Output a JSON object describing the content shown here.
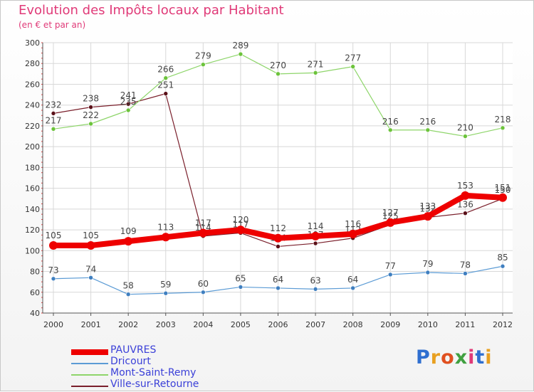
{
  "header": {
    "title": "Evolution des Impôts locaux par Habitant",
    "subtitle": "(en € et par an)"
  },
  "logo": {
    "letters": [
      "P",
      "r",
      "o",
      "x",
      "i",
      "t",
      "i"
    ],
    "colors": [
      "#2f6fd0",
      "#e8a020",
      "#e05020",
      "#40a040",
      "#e03a78",
      "#2f6fd0",
      "#e8a020"
    ]
  },
  "chart_data": {
    "type": "line",
    "title": "Evolution des Impôts locaux par Habitant",
    "subtitle": "(en € et par an)",
    "x": [
      "2000",
      "2001",
      "2002",
      "2003",
      "2004",
      "2005",
      "2006",
      "2007",
      "2008",
      "2009",
      "2010",
      "2011",
      "2012"
    ],
    "ylim": [
      40,
      300
    ],
    "yticks": [
      40,
      60,
      80,
      100,
      120,
      140,
      160,
      180,
      200,
      220,
      240,
      260,
      280,
      300
    ],
    "grid": true,
    "series": [
      {
        "name": "Ville-sur-Retourne",
        "color": "#7a1f2b",
        "marker": "#5a1018",
        "width": 1.2,
        "radius": 3,
        "values": [
          232,
          238,
          241,
          251,
          114,
          117,
          104,
          107,
          112,
          125,
          132,
          136,
          150
        ],
        "labels": [
          "232",
          "238",
          "241",
          "251",
          "114",
          "117",
          "104",
          "107",
          "112",
          "125",
          "132",
          "136",
          "150"
        ]
      },
      {
        "name": "Mont-Saint-Remy",
        "color": "#8ed56a",
        "marker": "#6cc33b",
        "width": 1.2,
        "radius": 3,
        "values": [
          217,
          222,
          235,
          266,
          279,
          289,
          270,
          271,
          277,
          216,
          216,
          210,
          218
        ],
        "labels": [
          "217",
          "222",
          "235",
          "266",
          "279",
          "289",
          "270",
          "271",
          "277",
          "216",
          "216",
          "210",
          "218"
        ]
      },
      {
        "name": "Dricourt",
        "color": "#5b9bd5",
        "marker": "#3f7fc0",
        "width": 1.2,
        "radius": 3,
        "values": [
          73,
          74,
          58,
          59,
          60,
          65,
          64,
          63,
          64,
          77,
          79,
          78,
          85
        ],
        "labels": [
          "73",
          "74",
          "58",
          "59",
          "60",
          "65",
          "64",
          "63",
          "64",
          "77",
          "79",
          "78",
          "85"
        ]
      },
      {
        "name": "PAUVRES",
        "color": "#ee0000",
        "marker": "#ee0000",
        "width": 8,
        "radius": 6,
        "values": [
          105,
          105,
          109,
          113,
          117,
          120,
          112,
          114,
          116,
          127,
          133,
          153,
          151
        ],
        "labels": [
          "105",
          "105",
          "109",
          "113",
          "117",
          "120",
          "112",
          "114",
          "116",
          "127",
          "133",
          "153",
          "151"
        ]
      }
    ],
    "legend": [
      "PAUVRES",
      "Dricourt",
      "Mont-Saint-Remy",
      "Ville-sur-Retourne"
    ]
  }
}
